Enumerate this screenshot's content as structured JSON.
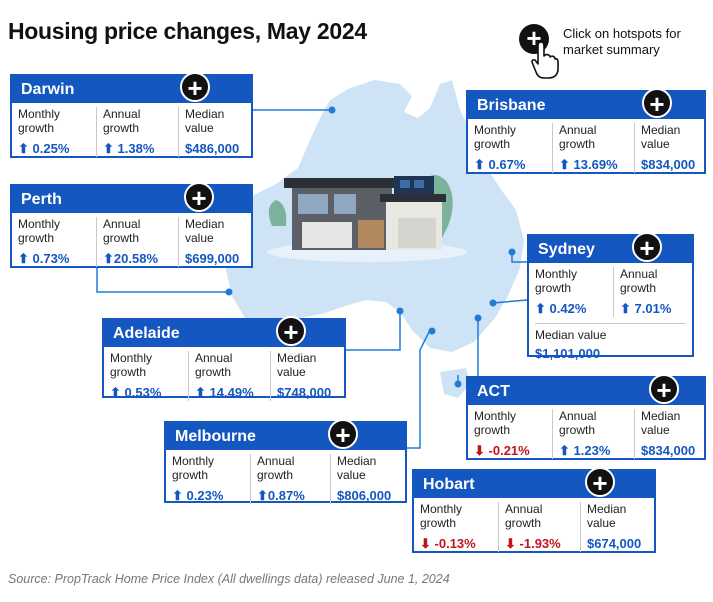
{
  "title": "Housing price changes, May 2024",
  "hint": {
    "icon": "plus-circle-icon",
    "pointer_icon": "hand-pointer-icon",
    "text": "Click on hotspots for market summary"
  },
  "labels": {
    "monthly": "Monthly growth",
    "annual": "Annual growth",
    "median": "Median value"
  },
  "colors": {
    "accent": "#1557c0",
    "negative": "#c0151b",
    "map": "#cfe3f6",
    "hotspot": "#1e7bd6"
  },
  "cities": {
    "darwin": {
      "name": "Darwin",
      "monthly": "0.25%",
      "monthly_dir": "up",
      "annual": "1.38%",
      "annual_dir": "up",
      "median": "$486,000"
    },
    "perth": {
      "name": "Perth",
      "monthly": "0.73%",
      "monthly_dir": "up",
      "annual": "20.58%",
      "annual_dir": "up",
      "median": "$699,000"
    },
    "adelaide": {
      "name": "Adelaide",
      "monthly": "0.53%",
      "monthly_dir": "up",
      "annual": "14.49%",
      "annual_dir": "up",
      "median": "$748,000"
    },
    "melbourne": {
      "name": "Melbourne",
      "monthly": "0.23%",
      "monthly_dir": "up",
      "annual": "0.87%",
      "annual_dir": "up",
      "median": "$806,000"
    },
    "brisbane": {
      "name": "Brisbane",
      "monthly": "0.67%",
      "monthly_dir": "up",
      "annual": "13.69%",
      "annual_dir": "up",
      "median": "$834,000"
    },
    "sydney": {
      "name": "Sydney",
      "monthly": "0.42%",
      "monthly_dir": "up",
      "annual": "7.01%",
      "annual_dir": "up",
      "median": "$1,101,000"
    },
    "act": {
      "name": "ACT",
      "monthly": "-0.21%",
      "monthly_dir": "down",
      "annual": "1.23%",
      "annual_dir": "up",
      "median": "$834,000"
    },
    "hobart": {
      "name": "Hobart",
      "monthly": "-0.13%",
      "monthly_dir": "down",
      "annual": "-1.93%",
      "annual_dir": "down",
      "median": "$674,000"
    }
  },
  "source": "Source: PropTrack Home Price Index (All dwellings data) released June 1, 2024"
}
